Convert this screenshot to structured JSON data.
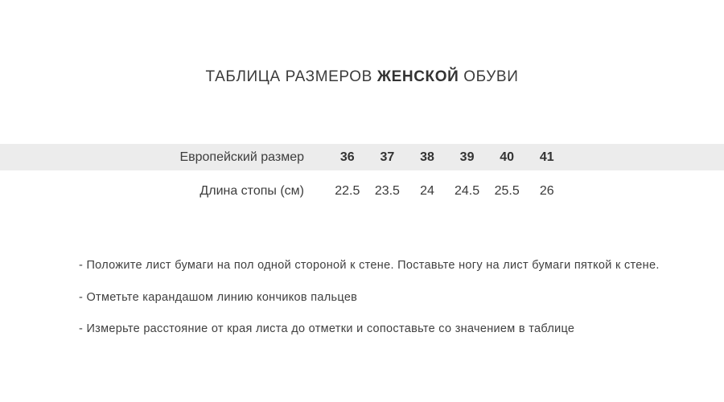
{
  "title": {
    "prefix": "ТАБЛИЦА РАЗМЕРОВ ",
    "highlight": "ЖЕНСКОЙ",
    "suffix": " ОБУВИ"
  },
  "size_table": {
    "rows": [
      {
        "label": "Европейский размер",
        "values": [
          "36",
          "37",
          "38",
          "39",
          "40",
          "41"
        ]
      },
      {
        "label": "Длина стопы (см)",
        "values": [
          "22.5",
          "23.5",
          "24",
          "24.5",
          "25.5",
          "26"
        ]
      }
    ]
  },
  "instructions": [
    "- Положите лист бумаги на пол одной стороной к стене. Поставьте ногу на лист бумаги пяткой к стене.",
    "- Отметьте карандашом линию кончиков пальцев",
    "- Измерьте расстояние от края листа до отметки и сопоставьте со значением в таблице"
  ],
  "colors": {
    "background": "#ffffff",
    "row_stripe": "#ececec",
    "text_dark": "#3b3b3b"
  }
}
